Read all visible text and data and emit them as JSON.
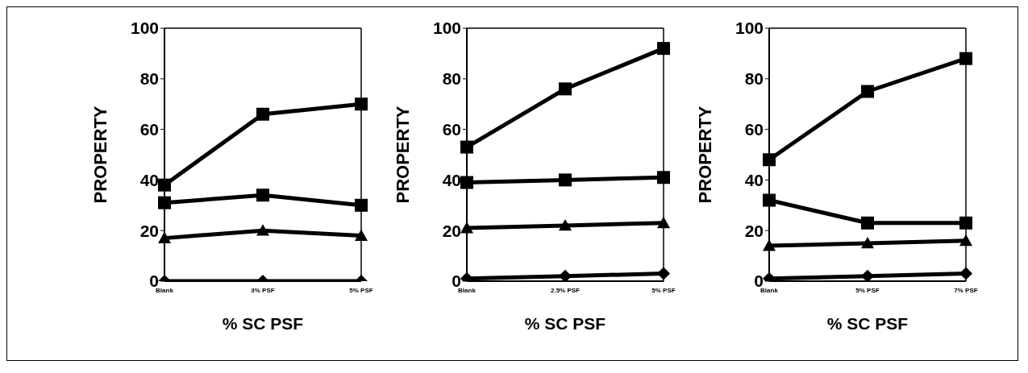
{
  "chart_data": [
    {
      "type": "line",
      "xlabel": "% SC PSF",
      "ylabel": "PROPERTY",
      "categories": [
        "Blank",
        "3% PSF",
        "5% PSF"
      ],
      "ylim": [
        0,
        100
      ],
      "yticks": [
        0,
        20,
        40,
        60,
        80,
        100
      ],
      "series": [
        {
          "color": "#000000",
          "marker": "square",
          "values": [
            38,
            66,
            70
          ]
        },
        {
          "color": "#000000",
          "marker": "square",
          "values": [
            31,
            34,
            30
          ]
        },
        {
          "color": "#000000",
          "marker": "triangle",
          "values": [
            17,
            20,
            18
          ]
        },
        {
          "color": "#000000",
          "marker": "diamond",
          "values": [
            0,
            0,
            0
          ]
        }
      ]
    },
    {
      "type": "line",
      "xlabel": "% SC PSF",
      "ylabel": "PROPERTY",
      "categories": [
        "Blank",
        "2.5% PSF",
        "5% PSF"
      ],
      "ylim": [
        0,
        100
      ],
      "yticks": [
        0,
        20,
        40,
        60,
        80,
        100
      ],
      "series": [
        {
          "color": "#000000",
          "marker": "square",
          "values": [
            53,
            76,
            92
          ]
        },
        {
          "color": "#000000",
          "marker": "square",
          "values": [
            39,
            40,
            41
          ]
        },
        {
          "color": "#000000",
          "marker": "triangle",
          "values": [
            21,
            22,
            23
          ]
        },
        {
          "color": "#000000",
          "marker": "diamond",
          "values": [
            1,
            2,
            3
          ]
        }
      ]
    },
    {
      "type": "line",
      "xlabel": "% SC PSF",
      "ylabel": "PROPERTY",
      "categories": [
        "Blank",
        "5% PSF",
        "7% PSF"
      ],
      "ylim": [
        0,
        100
      ],
      "yticks": [
        0,
        20,
        40,
        60,
        80,
        100
      ],
      "series": [
        {
          "color": "#000000",
          "marker": "square",
          "values": [
            48,
            75,
            88
          ]
        },
        {
          "color": "#000000",
          "marker": "square",
          "values": [
            32,
            23,
            23
          ]
        },
        {
          "color": "#000000",
          "marker": "triangle",
          "values": [
            14,
            15,
            16
          ]
        },
        {
          "color": "#000000",
          "marker": "diamond",
          "values": [
            1,
            2,
            3
          ]
        }
      ]
    }
  ]
}
